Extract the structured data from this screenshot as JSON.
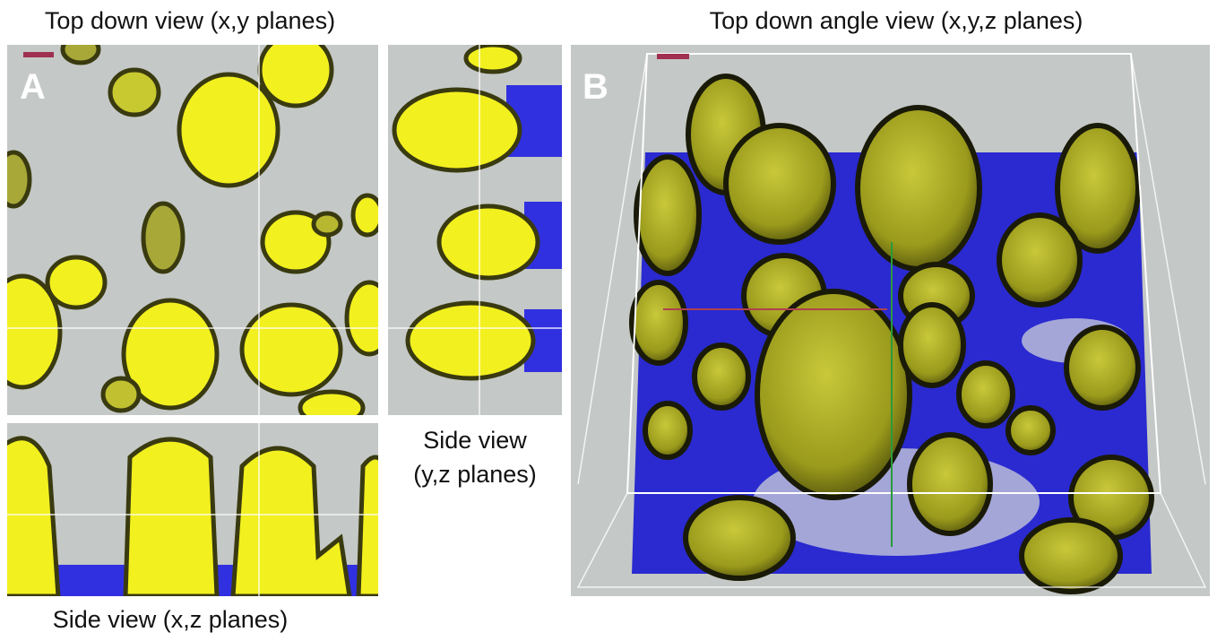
{
  "figure": {
    "panel_a": {
      "title": "Top down view (x,y planes)",
      "label": "A",
      "side_yz_caption": [
        "Side view",
        "(y,z planes)"
      ],
      "side_xz_caption": "Side view (x,z planes)"
    },
    "panel_b": {
      "title": "Top down angle view (x,y,z planes)",
      "label": "B"
    }
  }
}
